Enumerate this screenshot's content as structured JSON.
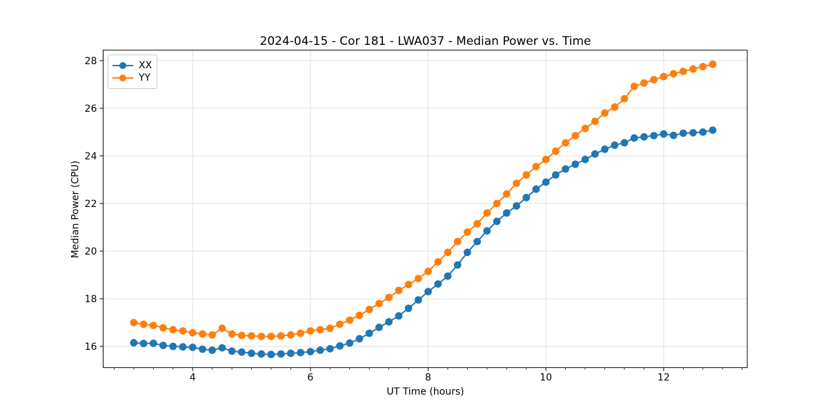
{
  "chart_data": {
    "type": "line",
    "title": "2024-04-15 - Cor 181 - LWA037 - Median Power vs. Time",
    "xlabel": "UT Time (hours)",
    "ylabel": "Median Power (CPU)",
    "xlim": [
      2.48,
      13.42
    ],
    "ylim": [
      15.11,
      28.44
    ],
    "x_major_ticks": [
      4,
      6,
      8,
      10,
      12
    ],
    "x_minor_step": 0.33333,
    "y_major_ticks": [
      16,
      18,
      20,
      22,
      24,
      26,
      28
    ],
    "grid": true,
    "legend_position": "upper-left",
    "background_color": "#ffffff",
    "grid_color": "#e0e0e0",
    "x": [
      3.0,
      3.167,
      3.333,
      3.5,
      3.667,
      3.833,
      4.0,
      4.167,
      4.333,
      4.5,
      4.667,
      4.833,
      5.0,
      5.167,
      5.333,
      5.5,
      5.667,
      5.833,
      6.0,
      6.167,
      6.333,
      6.5,
      6.667,
      6.833,
      7.0,
      7.167,
      7.333,
      7.5,
      7.667,
      7.833,
      8.0,
      8.167,
      8.333,
      8.5,
      8.667,
      8.833,
      9.0,
      9.167,
      9.333,
      9.5,
      9.667,
      9.833,
      10.0,
      10.167,
      10.333,
      10.5,
      10.667,
      10.833,
      11.0,
      11.167,
      11.333,
      11.5,
      11.667,
      11.833,
      12.0,
      12.167,
      12.333,
      12.5,
      12.667,
      12.833
    ],
    "series": [
      {
        "name": "XX",
        "color": "#1f77b4",
        "values": [
          16.15,
          16.12,
          16.13,
          16.04,
          16.0,
          15.98,
          15.96,
          15.88,
          15.84,
          15.94,
          15.8,
          15.76,
          15.71,
          15.68,
          15.66,
          15.68,
          15.71,
          15.74,
          15.78,
          15.84,
          15.9,
          16.02,
          16.14,
          16.32,
          16.55,
          16.8,
          17.03,
          17.28,
          17.6,
          17.95,
          18.3,
          18.62,
          18.95,
          19.42,
          19.95,
          20.4,
          20.85,
          21.25,
          21.6,
          21.9,
          22.25,
          22.6,
          22.9,
          23.2,
          23.45,
          23.65,
          23.85,
          24.08,
          24.28,
          24.45,
          24.55,
          24.75,
          24.8,
          24.85,
          24.92,
          24.86,
          24.95,
          24.97,
          25.0,
          25.08
        ]
      },
      {
        "name": "YY",
        "color": "#ff7f0e",
        "values": [
          17.0,
          16.93,
          16.88,
          16.78,
          16.7,
          16.65,
          16.57,
          16.52,
          16.48,
          16.76,
          16.52,
          16.46,
          16.44,
          16.42,
          16.42,
          16.44,
          16.48,
          16.55,
          16.65,
          16.7,
          16.76,
          16.93,
          17.1,
          17.3,
          17.55,
          17.8,
          18.05,
          18.35,
          18.6,
          18.85,
          19.15,
          19.55,
          19.95,
          20.4,
          20.8,
          21.15,
          21.6,
          22.0,
          22.4,
          22.85,
          23.2,
          23.55,
          23.85,
          24.2,
          24.55,
          24.85,
          25.15,
          25.45,
          25.8,
          26.05,
          26.4,
          26.92,
          27.06,
          27.2,
          27.33,
          27.45,
          27.55,
          27.65,
          27.75,
          27.85
        ]
      }
    ]
  }
}
